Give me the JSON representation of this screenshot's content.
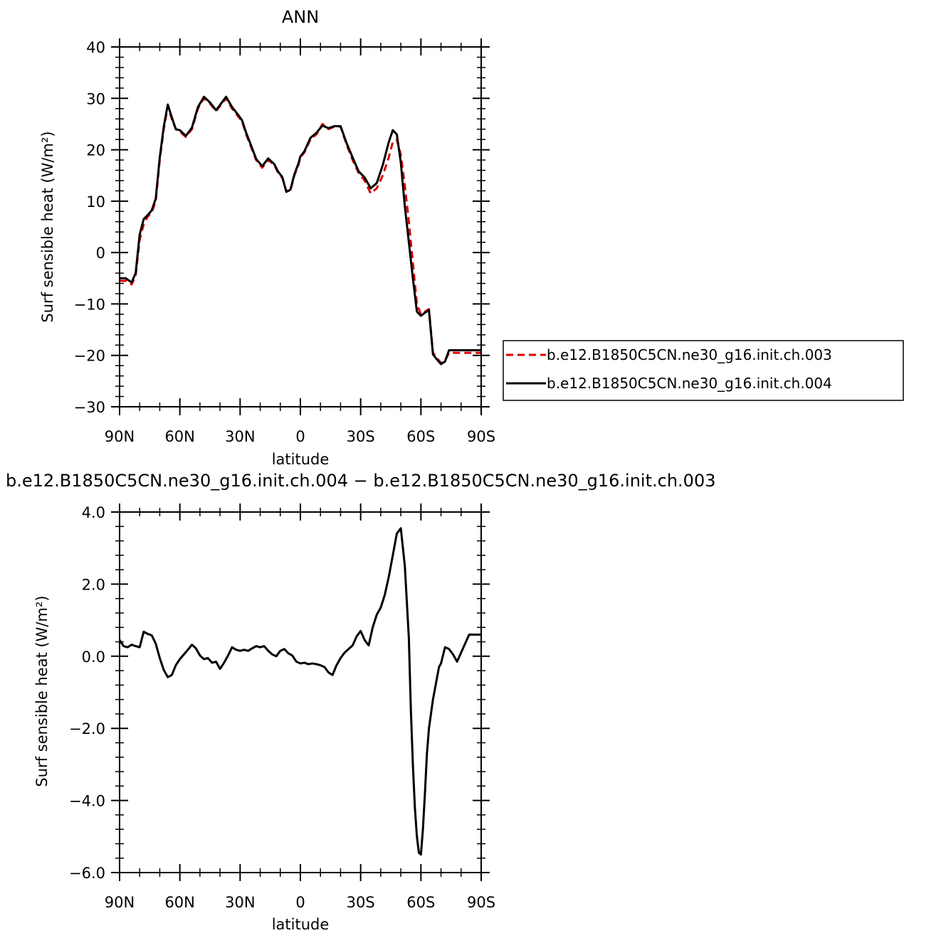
{
  "chart_data": [
    {
      "type": "line",
      "title": "ANN",
      "xlabel": "latitude",
      "ylabel": "Surf  sensible  heat  (W/m²)",
      "xlim": [
        90,
        -90
      ],
      "ylim": [
        -30,
        40
      ],
      "x_ticks": [
        90,
        60,
        30,
        0,
        -30,
        -60,
        -90
      ],
      "x_tick_labels": [
        "90N",
        "60N",
        "30N",
        "0",
        "30S",
        "60S",
        "90S"
      ],
      "y_ticks": [
        -30,
        -20,
        -10,
        0,
        10,
        20,
        30,
        40
      ],
      "y_tick_labels": [
        "−30",
        "−20",
        "−10",
        "0",
        "10",
        "20",
        "30",
        "40"
      ],
      "grid": false,
      "legend_position": "right",
      "series": [
        {
          "name": "b.e12.B1850C5CN.ne30_g16.init.ch.003",
          "color": "#e00000",
          "dash": "dashed",
          "x": [
            90,
            87,
            84,
            82,
            80,
            78,
            76,
            74,
            72,
            70,
            68,
            66,
            64,
            62,
            60,
            57,
            54,
            51,
            48,
            45,
            42,
            40,
            37,
            34,
            31,
            29,
            27,
            25,
            22,
            19,
            16,
            13,
            11,
            9,
            7,
            5,
            3,
            1,
            0,
            -2,
            -5,
            -8,
            -11,
            -14,
            -17,
            -20,
            -23,
            -26,
            -29,
            -32,
            -35,
            -38,
            -41,
            -44,
            -46,
            -48,
            -50,
            -52,
            -54,
            -56,
            -58,
            -60,
            -62,
            -64,
            -66,
            -68,
            -70,
            -72,
            -74,
            -76,
            -78,
            -80,
            -82,
            -84,
            -86,
            -88,
            -90
          ],
          "values": [
            -5.5,
            -5.5,
            -6.2,
            -4.5,
            2.5,
            5.5,
            7.0,
            7.8,
            10.0,
            18.0,
            24.0,
            28.5,
            26.0,
            24.0,
            23.5,
            22.5,
            24.0,
            28.0,
            30.0,
            29.0,
            27.5,
            28.5,
            30.0,
            28.0,
            26.5,
            25.5,
            23.0,
            21.0,
            18.0,
            16.5,
            18.0,
            17.0,
            15.5,
            14.5,
            12.0,
            12.0,
            15.0,
            17.0,
            18.5,
            19.5,
            22.0,
            23.0,
            25.0,
            24.0,
            24.5,
            24.5,
            21.0,
            18.0,
            15.5,
            14.0,
            11.5,
            12.5,
            15.0,
            18.5,
            21.5,
            22.0,
            19.0,
            13.0,
            6.0,
            -2.0,
            -10.0,
            -12.0,
            -11.5,
            -11.0,
            -19.5,
            -20.5,
            -21.5,
            -21.0,
            -19.5,
            -19.5,
            -19.5,
            -19.5,
            -19.5,
            -19.5,
            -19.5,
            -19.5,
            -19.5
          ]
        },
        {
          "name": "b.e12.B1850C5CN.ne30_g16.init.ch.004",
          "color": "#000000",
          "dash": "solid",
          "x": [
            90,
            87,
            84,
            82,
            80,
            78,
            76,
            74,
            72,
            70,
            68,
            66,
            64,
            62,
            60,
            57,
            54,
            51,
            48,
            45,
            42,
            40,
            37,
            34,
            31,
            29,
            27,
            25,
            22,
            19,
            16,
            13,
            11,
            9,
            7,
            5,
            3,
            1,
            0,
            -2,
            -5,
            -8,
            -11,
            -14,
            -17,
            -20,
            -23,
            -26,
            -29,
            -32,
            -35,
            -38,
            -41,
            -44,
            -46,
            -48,
            -50,
            -52,
            -54,
            -56,
            -58,
            -60,
            -62,
            -64,
            -66,
            -68,
            -70,
            -72,
            -74,
            -76,
            -78,
            -80,
            -82,
            -84,
            -86,
            -88,
            -90
          ],
          "values": [
            -5.0,
            -5.0,
            -5.8,
            -4.0,
            3.5,
            6.5,
            7.3,
            8.2,
            10.5,
            18.5,
            24.5,
            28.8,
            26.3,
            24.0,
            23.8,
            22.7,
            24.3,
            28.3,
            30.3,
            29.2,
            27.7,
            28.7,
            30.3,
            28.3,
            26.8,
            25.7,
            23.3,
            21.3,
            18.2,
            16.8,
            18.3,
            17.2,
            15.7,
            14.7,
            11.8,
            12.2,
            15.2,
            17.3,
            18.7,
            19.7,
            22.3,
            23.3,
            24.7,
            24.2,
            24.6,
            24.6,
            21.3,
            18.5,
            15.8,
            14.6,
            12.5,
            13.5,
            17.0,
            21.5,
            23.8,
            23.0,
            17.5,
            9.0,
            2.0,
            -5.0,
            -11.5,
            -12.3,
            -11.7,
            -11.2,
            -19.8,
            -20.8,
            -21.7,
            -21.2,
            -19.0,
            -19.0,
            -19.0,
            -19.0,
            -19.0,
            -19.0,
            -19.0,
            -19.0,
            -19.0
          ]
        }
      ]
    },
    {
      "type": "line",
      "title": "b.e12.B1850C5CN.ne30_g16.init.ch.004  −  b.e12.B1850C5CN.ne30_g16.init.ch.003",
      "xlabel": "latitude",
      "ylabel": "Surf  sensible  heat  (W/m²)",
      "xlim": [
        90,
        -90
      ],
      "ylim": [
        -6,
        4
      ],
      "x_ticks": [
        90,
        60,
        30,
        0,
        -30,
        -60,
        -90
      ],
      "x_tick_labels": [
        "90N",
        "60N",
        "30N",
        "0",
        "30S",
        "60S",
        "90S"
      ],
      "y_ticks": [
        -6,
        -4,
        -2,
        0,
        2,
        4
      ],
      "y_tick_labels": [
        "−6.0",
        "−4.0",
        "−2.0",
        "0.0",
        "2.0",
        "4.0"
      ],
      "grid": false,
      "series": [
        {
          "color": "#000000",
          "dash": "solid",
          "x": [
            90,
            88,
            86,
            84,
            82,
            80,
            78,
            76,
            74,
            72,
            70,
            68,
            66,
            64,
            62,
            60,
            58,
            56,
            54,
            52,
            50,
            48,
            46,
            44,
            42,
            40,
            38,
            36,
            34,
            32,
            30,
            28,
            26,
            24,
            22,
            20,
            18,
            16,
            14,
            12,
            10,
            8,
            6,
            4,
            2,
            0,
            -2,
            -4,
            -6,
            -8,
            -10,
            -12,
            -14,
            -16,
            -18,
            -20,
            -22,
            -24,
            -26,
            -28,
            -30,
            -32,
            -34,
            -36,
            -38,
            -40,
            -42,
            -44,
            -46,
            -48,
            -50,
            -52,
            -54,
            -55,
            -56,
            -57,
            -58,
            -59,
            -60,
            -61,
            -62,
            -63,
            -64,
            -65,
            -66,
            -67,
            -68,
            -69,
            -70,
            -72,
            -74,
            -76,
            -78,
            -80,
            -82,
            -84,
            -86,
            -88,
            -90
          ],
          "values": [
            0.45,
            0.28,
            0.25,
            0.32,
            0.28,
            0.25,
            0.68,
            0.62,
            0.58,
            0.35,
            -0.05,
            -0.38,
            -0.58,
            -0.52,
            -0.25,
            -0.08,
            0.05,
            0.18,
            0.32,
            0.22,
            0.02,
            -0.08,
            -0.05,
            -0.18,
            -0.15,
            -0.35,
            -0.18,
            0.02,
            0.25,
            0.18,
            0.15,
            0.18,
            0.15,
            0.22,
            0.28,
            0.25,
            0.28,
            0.15,
            0.05,
            0.0,
            0.15,
            0.2,
            0.08,
            0.02,
            -0.15,
            -0.2,
            -0.18,
            -0.22,
            -0.2,
            -0.22,
            -0.25,
            -0.3,
            -0.45,
            -0.52,
            -0.25,
            -0.05,
            0.1,
            0.2,
            0.3,
            0.55,
            0.7,
            0.45,
            0.3,
            0.8,
            1.15,
            1.35,
            1.7,
            2.2,
            2.8,
            3.4,
            3.55,
            2.5,
            0.5,
            -1.5,
            -3.0,
            -4.2,
            -5.0,
            -5.45,
            -5.5,
            -4.8,
            -3.8,
            -2.7,
            -2.0,
            -1.6,
            -1.2,
            -0.9,
            -0.6,
            -0.3,
            -0.2,
            0.25,
            0.2,
            0.05,
            -0.15,
            0.1,
            0.35,
            0.6,
            0.6,
            0.6,
            0.6
          ]
        }
      ]
    }
  ],
  "legend": {
    "items": [
      {
        "label": "b.e12.B1850C5CN.ne30_g16.init.ch.003",
        "color": "#e00000",
        "dash": "dashed"
      },
      {
        "label": "b.e12.B1850C5CN.ne30_g16.init.ch.004",
        "color": "#000000",
        "dash": "solid"
      }
    ]
  }
}
